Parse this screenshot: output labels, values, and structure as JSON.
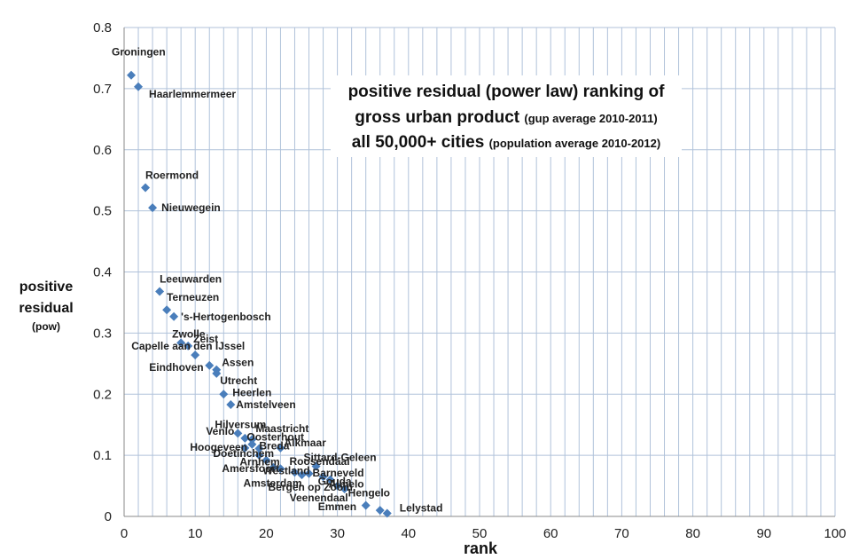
{
  "chart_data": {
    "type": "scatter",
    "title_lines": [
      {
        "main": "positive residual (power law) ranking of",
        "small": ""
      },
      {
        "main": "gross urban product ",
        "small": "(gup average 2010-2011)"
      },
      {
        "main": "all 50,000+ cities ",
        "small": "(population average 2010-2012)"
      }
    ],
    "xlabel": "rank",
    "ylabel_lines": [
      "positive",
      "residual"
    ],
    "ylabel_unit": "(pow)",
    "xlim": [
      0,
      100
    ],
    "ylim": [
      0,
      0.8
    ],
    "x_ticks": [
      "0",
      "10",
      "20",
      "30",
      "40",
      "50",
      "60",
      "70",
      "80",
      "90",
      "100"
    ],
    "y_ticks": [
      "0",
      "0.1",
      "0.2",
      "0.3",
      "0.4",
      "0.5",
      "0.6",
      "0.7",
      "0.8"
    ],
    "grid": {
      "major": true,
      "vertical_minor_step": 2
    },
    "marker_color": "#4a7ebb",
    "grid_color": "#b0c2da",
    "points": [
      {
        "x": 1,
        "y": 0.722,
        "label": "Groningen"
      },
      {
        "x": 2,
        "y": 0.703,
        "label": "Haarlemmermeer"
      },
      {
        "x": 3,
        "y": 0.538,
        "label": "Roermond"
      },
      {
        "x": 4,
        "y": 0.505,
        "label": "Nieuwegein"
      },
      {
        "x": 5,
        "y": 0.368,
        "label": "Leeuwarden"
      },
      {
        "x": 6,
        "y": 0.338,
        "label": "Terneuzen"
      },
      {
        "x": 7,
        "y": 0.327,
        "label": "'s-Hertogenbosch"
      },
      {
        "x": 8,
        "y": 0.284,
        "label": "Zwolle"
      },
      {
        "x": 9,
        "y": 0.279,
        "label": "Zeist"
      },
      {
        "x": 10,
        "y": 0.264,
        "label": "Capelle aan den IJssel"
      },
      {
        "x": 12,
        "y": 0.247,
        "label": "Eindhoven"
      },
      {
        "x": 13,
        "y": 0.24,
        "label": "Assen"
      },
      {
        "x": 13,
        "y": 0.234,
        "label": "Utrecht"
      },
      {
        "x": 14,
        "y": 0.2,
        "label": "Heerlen"
      },
      {
        "x": 15,
        "y": 0.183,
        "label": "Amstelveen"
      },
      {
        "x": 16,
        "y": 0.136,
        "label": "Hilversum"
      },
      {
        "x": 17,
        "y": 0.128,
        "label": "Venlo"
      },
      {
        "x": 18,
        "y": 0.126,
        "label": "Maastricht"
      },
      {
        "x": 18,
        "y": 0.118,
        "label": "Oosterhout"
      },
      {
        "x": 17,
        "y": 0.112,
        "label": "Hoogeveen"
      },
      {
        "x": 19,
        "y": 0.111,
        "label": "Breda"
      },
      {
        "x": 22,
        "y": 0.112,
        "label": "Alkmaar"
      },
      {
        "x": 19,
        "y": 0.1,
        "label": "Doetinchem"
      },
      {
        "x": 20,
        "y": 0.092,
        "label": "Arnhem"
      },
      {
        "x": 21,
        "y": 0.08,
        "label": "Amersfoort"
      },
      {
        "x": 22,
        "y": 0.078,
        "label": "Westland"
      },
      {
        "x": 24,
        "y": 0.072,
        "label": "Amsterdam"
      },
      {
        "x": 25,
        "y": 0.068,
        "label": "Bergen op Zoom"
      },
      {
        "x": 26,
        "y": 0.07,
        "label": "Roosendaal"
      },
      {
        "x": 27,
        "y": 0.082,
        "label": "Sittard-Geleen"
      },
      {
        "x": 28,
        "y": 0.065,
        "label": "Barneveld"
      },
      {
        "x": 29,
        "y": 0.06,
        "label": "Gouda"
      },
      {
        "x": 30,
        "y": 0.05,
        "label": "Almelo"
      },
      {
        "x": 31,
        "y": 0.045,
        "label": "Veenendaal"
      },
      {
        "x": 34,
        "y": 0.018,
        "label": "Hengelo"
      },
      {
        "x": 36,
        "y": 0.01,
        "label": "Emmen"
      },
      {
        "x": 37,
        "y": 0.005,
        "label": "Lelystad"
      }
    ]
  }
}
